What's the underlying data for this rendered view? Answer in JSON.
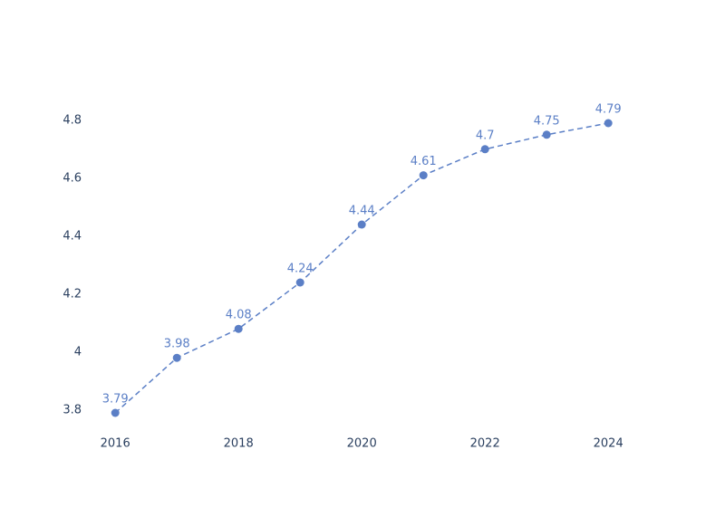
{
  "chart_data": {
    "type": "line",
    "x": [
      2016,
      2017,
      2018,
      2019,
      2020,
      2021,
      2022,
      2023,
      2024
    ],
    "series": [
      {
        "color": "#5b7fc6",
        "values": [
          3.79,
          3.98,
          4.08,
          4.24,
          4.44,
          4.61,
          4.7,
          4.75,
          4.79
        ]
      }
    ],
    "xlim": [
      2015.6,
      2024.6
    ],
    "xticks": [
      2016,
      2018,
      2020,
      2022,
      2024
    ],
    "ylim": [
      3.74,
      4.84
    ],
    "yticks": [
      3.8,
      4,
      4.2,
      4.4,
      4.6,
      4.8
    ],
    "grid": false,
    "line_dash": true,
    "data_labels": true
  }
}
